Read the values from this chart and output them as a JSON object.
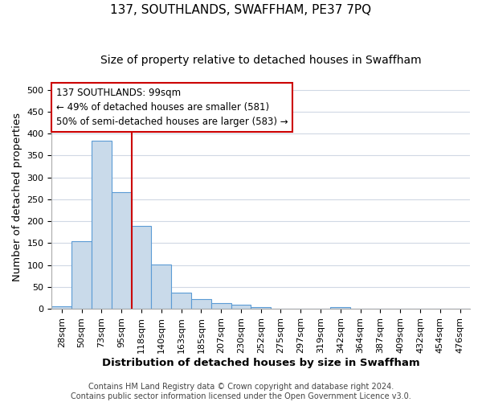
{
  "title": "137, SOUTHLANDS, SWAFFHAM, PE37 7PQ",
  "subtitle": "Size of property relative to detached houses in Swaffham",
  "xlabel": "Distribution of detached houses by size in Swaffham",
  "ylabel": "Number of detached properties",
  "bar_color": "#c9daea",
  "bar_edge_color": "#5b9bd5",
  "categories": [
    "28sqm",
    "50sqm",
    "73sqm",
    "95sqm",
    "118sqm",
    "140sqm",
    "163sqm",
    "185sqm",
    "207sqm",
    "230sqm",
    "252sqm",
    "275sqm",
    "297sqm",
    "319sqm",
    "342sqm",
    "364sqm",
    "387sqm",
    "409sqm",
    "432sqm",
    "454sqm",
    "476sqm"
  ],
  "values": [
    6,
    155,
    383,
    267,
    190,
    102,
    36,
    22,
    13,
    9,
    4,
    1,
    0,
    0,
    3,
    0,
    0,
    0,
    0,
    0,
    0
  ],
  "ylim": [
    0,
    510
  ],
  "yticks": [
    0,
    50,
    100,
    150,
    200,
    250,
    300,
    350,
    400,
    450,
    500
  ],
  "vline_x_idx": 3,
  "vline_color": "#cc0000",
  "annotation_line1": "137 SOUTHLANDS: 99sqm",
  "annotation_line2": "← 49% of detached houses are smaller (581)",
  "annotation_line3": "50% of semi-detached houses are larger (583) →",
  "footer_line1": "Contains HM Land Registry data © Crown copyright and database right 2024.",
  "footer_line2": "Contains public sector information licensed under the Open Government Licence v3.0.",
  "background_color": "#ffffff",
  "grid_color": "#d0d8e4",
  "title_fontsize": 11,
  "subtitle_fontsize": 10,
  "label_fontsize": 9.5,
  "tick_fontsize": 8,
  "annotation_fontsize": 8.5,
  "footer_fontsize": 7
}
